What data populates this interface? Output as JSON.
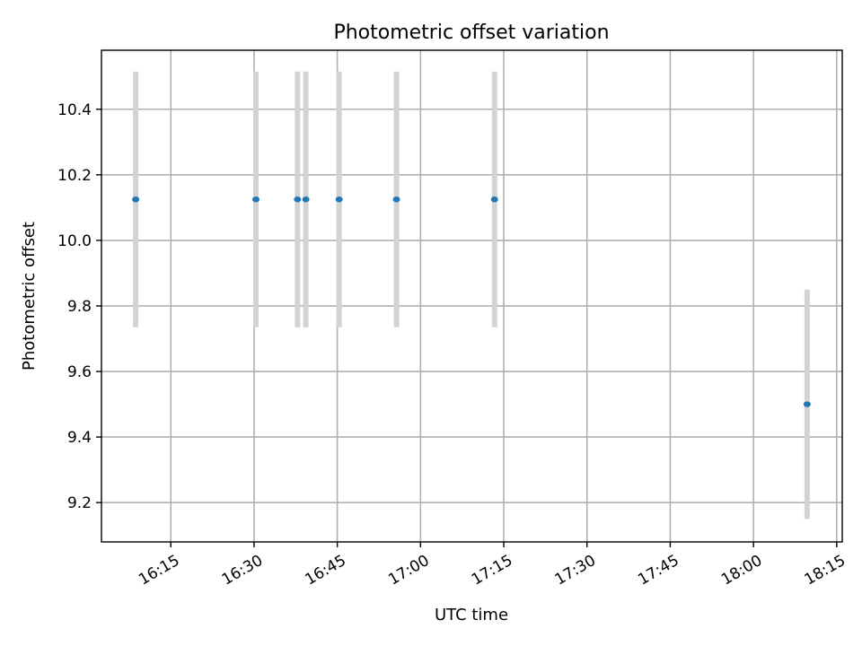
{
  "chart_data": {
    "type": "scatter",
    "title": "Photometric offset variation",
    "xlabel": "UTC time",
    "ylabel": "Photometric offset",
    "x_axis": {
      "kind": "time",
      "range": [
        "16:02:30",
        "18:16:00"
      ],
      "ticks": [
        "16:15",
        "16:30",
        "16:45",
        "17:00",
        "17:15",
        "17:30",
        "17:45",
        "18:00",
        "18:15"
      ]
    },
    "y_axis": {
      "range": [
        9.08,
        10.58
      ],
      "ticks": [
        9.2,
        9.4,
        9.6,
        9.8,
        10.0,
        10.2,
        10.4
      ]
    },
    "grid": true,
    "series": [
      {
        "marker_color": "#1f77b4",
        "error_color": "#d3d3d3",
        "points": [
          {
            "x": "16:08:40",
            "y": 10.125,
            "err": 0.39
          },
          {
            "x": "16:30:20",
            "y": 10.125,
            "err": 0.39
          },
          {
            "x": "16:37:50",
            "y": 10.125,
            "err": 0.39
          },
          {
            "x": "16:39:20",
            "y": 10.125,
            "err": 0.39
          },
          {
            "x": "16:45:20",
            "y": 10.125,
            "err": 0.39
          },
          {
            "x": "16:55:40",
            "y": 10.125,
            "err": 0.39
          },
          {
            "x": "17:13:20",
            "y": 10.125,
            "err": 0.39
          },
          {
            "x": "18:09:40",
            "y": 9.5,
            "err": 0.35
          }
        ]
      }
    ]
  }
}
